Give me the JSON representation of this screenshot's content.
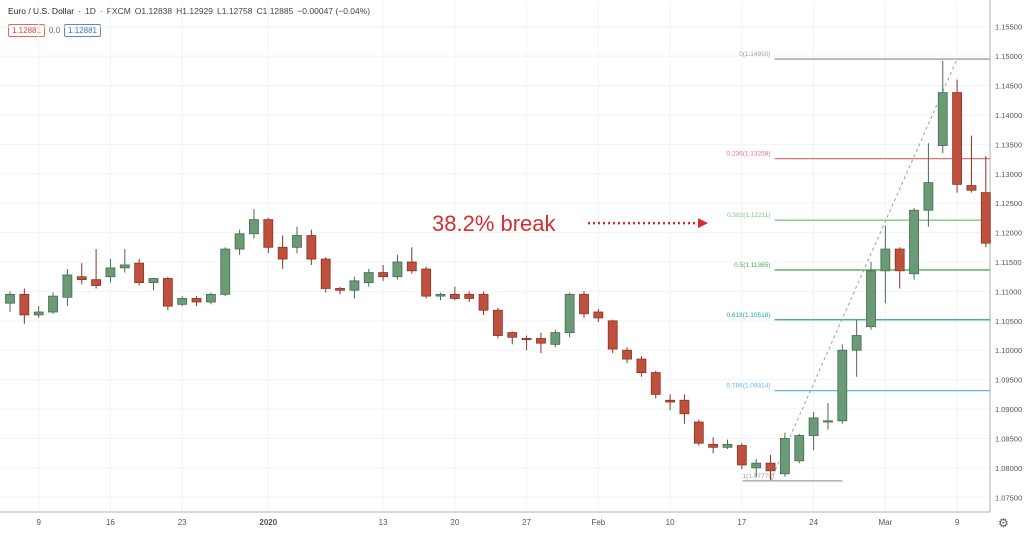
{
  "header": {
    "symbol": "Euro / U.S. Dollar",
    "interval": "1D",
    "source": "FXCM",
    "open": "O1.12838",
    "high": "H1.12929",
    "low": "L1.12758",
    "close": "C1.12885",
    "change": "−0.00047 (−0.04%)",
    "sell_price": "1.12881",
    "spread": "0.0",
    "buy_price": "1.12881"
  },
  "chart_data": {
    "type": "candlestick",
    "y_range": [
      1.0725,
      1.1575
    ],
    "y_ticks": [
      "1.07500",
      "1.08000",
      "1.08500",
      "1.09000",
      "1.09500",
      "1.10000",
      "1.10500",
      "1.11000",
      "1.11500",
      "1.12000",
      "1.12500",
      "1.13000",
      "1.13500",
      "1.14000",
      "1.14500",
      "1.15000",
      "1.15500"
    ],
    "x_ticks": [
      {
        "label": "9",
        "index": 2
      },
      {
        "label": "16",
        "index": 7
      },
      {
        "label": "23",
        "index": 12
      },
      {
        "label": "2020",
        "index": 18
      },
      {
        "label": "13",
        "index": 26
      },
      {
        "label": "20",
        "index": 31
      },
      {
        "label": "27",
        "index": 36
      },
      {
        "label": "Feb",
        "index": 41
      },
      {
        "label": "10",
        "index": 46
      },
      {
        "label": "17",
        "index": 51
      },
      {
        "label": "24",
        "index": 56
      },
      {
        "label": "Mar",
        "index": 61
      },
      {
        "label": "9",
        "index": 66
      }
    ],
    "candles": [
      {
        "o": 1.108,
        "h": 1.11,
        "l": 1.1065,
        "c": 1.1095
      },
      {
        "o": 1.1095,
        "h": 1.1105,
        "l": 1.1045,
        "c": 1.106
      },
      {
        "o": 1.106,
        "h": 1.1075,
        "l": 1.1055,
        "c": 1.1065
      },
      {
        "o": 1.1065,
        "h": 1.1098,
        "l": 1.1062,
        "c": 1.1092
      },
      {
        "o": 1.109,
        "h": 1.1138,
        "l": 1.1075,
        "c": 1.1128
      },
      {
        "o": 1.1125,
        "h": 1.1148,
        "l": 1.1112,
        "c": 1.112
      },
      {
        "o": 1.112,
        "h": 1.1172,
        "l": 1.1105,
        "c": 1.111
      },
      {
        "o": 1.1125,
        "h": 1.1155,
        "l": 1.1115,
        "c": 1.114
      },
      {
        "o": 1.114,
        "h": 1.1172,
        "l": 1.1132,
        "c": 1.1145
      },
      {
        "o": 1.1148,
        "h": 1.1155,
        "l": 1.111,
        "c": 1.1115
      },
      {
        "o": 1.1115,
        "h": 1.1122,
        "l": 1.1102,
        "c": 1.1122
      },
      {
        "o": 1.1122,
        "h": 1.1125,
        "l": 1.1068,
        "c": 1.1075
      },
      {
        "o": 1.1078,
        "h": 1.1092,
        "l": 1.1075,
        "c": 1.1088
      },
      {
        "o": 1.1088,
        "h": 1.1092,
        "l": 1.1075,
        "c": 1.1082
      },
      {
        "o": 1.1082,
        "h": 1.1098,
        "l": 1.1078,
        "c": 1.1095
      },
      {
        "o": 1.1095,
        "h": 1.1175,
        "l": 1.1092,
        "c": 1.1172
      },
      {
        "o": 1.1172,
        "h": 1.1205,
        "l": 1.1162,
        "c": 1.1198
      },
      {
        "o": 1.1198,
        "h": 1.124,
        "l": 1.119,
        "c": 1.1222
      },
      {
        "o": 1.1222,
        "h": 1.1225,
        "l": 1.1165,
        "c": 1.1175
      },
      {
        "o": 1.1175,
        "h": 1.1195,
        "l": 1.1138,
        "c": 1.1155
      },
      {
        "o": 1.1175,
        "h": 1.121,
        "l": 1.1165,
        "c": 1.1195
      },
      {
        "o": 1.1195,
        "h": 1.1205,
        "l": 1.1145,
        "c": 1.1155
      },
      {
        "o": 1.1155,
        "h": 1.1158,
        "l": 1.1098,
        "c": 1.1105
      },
      {
        "o": 1.1105,
        "h": 1.1108,
        "l": 1.1095,
        "c": 1.1102
      },
      {
        "o": 1.1102,
        "h": 1.1125,
        "l": 1.1088,
        "c": 1.1118
      },
      {
        "o": 1.1115,
        "h": 1.1138,
        "l": 1.1108,
        "c": 1.1132
      },
      {
        "o": 1.1132,
        "h": 1.1145,
        "l": 1.1118,
        "c": 1.1125
      },
      {
        "o": 1.1125,
        "h": 1.1162,
        "l": 1.112,
        "c": 1.115
      },
      {
        "o": 1.115,
        "h": 1.1175,
        "l": 1.113,
        "c": 1.1135
      },
      {
        "o": 1.1138,
        "h": 1.1142,
        "l": 1.1088,
        "c": 1.1092
      },
      {
        "o": 1.1092,
        "h": 1.1098,
        "l": 1.1085,
        "c": 1.1095
      },
      {
        "o": 1.1095,
        "h": 1.1108,
        "l": 1.1085,
        "c": 1.1088
      },
      {
        "o": 1.1095,
        "h": 1.11,
        "l": 1.1082,
        "c": 1.1088
      },
      {
        "o": 1.1095,
        "h": 1.11,
        "l": 1.106,
        "c": 1.1068
      },
      {
        "o": 1.1068,
        "h": 1.1072,
        "l": 1.102,
        "c": 1.1025
      },
      {
        "o": 1.103,
        "h": 1.1032,
        "l": 1.101,
        "c": 1.1022
      },
      {
        "o": 1.102,
        "h": 1.1025,
        "l": 1.1,
        "c": 1.1018
      },
      {
        "o": 1.102,
        "h": 1.103,
        "l": 1.0995,
        "c": 1.1012
      },
      {
        "o": 1.101,
        "h": 1.1035,
        "l": 1.1005,
        "c": 1.103
      },
      {
        "o": 1.103,
        "h": 1.1098,
        "l": 1.1022,
        "c": 1.1095
      },
      {
        "o": 1.1095,
        "h": 1.11,
        "l": 1.1055,
        "c": 1.1062
      },
      {
        "o": 1.1065,
        "h": 1.107,
        "l": 1.1048,
        "c": 1.1055
      },
      {
        "o": 1.105,
        "h": 1.1052,
        "l": 1.0995,
        "c": 1.1002
      },
      {
        "o": 1.1,
        "h": 1.1005,
        "l": 1.0978,
        "c": 1.0985
      },
      {
        "o": 1.0985,
        "h": 1.099,
        "l": 1.0955,
        "c": 1.0962
      },
      {
        "o": 1.0962,
        "h": 1.0965,
        "l": 1.0918,
        "c": 1.0925
      },
      {
        "o": 1.0915,
        "h": 1.0925,
        "l": 1.0898,
        "c": 1.0912
      },
      {
        "o": 1.0915,
        "h": 1.0925,
        "l": 1.0875,
        "c": 1.0892
      },
      {
        "o": 1.0878,
        "h": 1.0882,
        "l": 1.0838,
        "c": 1.0842
      },
      {
        "o": 1.084,
        "h": 1.0852,
        "l": 1.0825,
        "c": 1.0835
      },
      {
        "o": 1.0835,
        "h": 1.0848,
        "l": 1.0832,
        "c": 1.084
      },
      {
        "o": 1.0838,
        "h": 1.0842,
        "l": 1.0798,
        "c": 1.0805
      },
      {
        "o": 1.08,
        "h": 1.0815,
        "l": 1.0785,
        "c": 1.0808
      },
      {
        "o": 1.0808,
        "h": 1.0822,
        "l": 1.078,
        "c": 1.0795
      },
      {
        "o": 1.079,
        "h": 1.086,
        "l": 1.0785,
        "c": 1.085
      },
      {
        "o": 1.0812,
        "h": 1.0858,
        "l": 1.0808,
        "c": 1.0855
      },
      {
        "o": 1.0855,
        "h": 1.0895,
        "l": 1.083,
        "c": 1.0885
      },
      {
        "o": 1.088,
        "h": 1.091,
        "l": 1.0865,
        "c": 1.088
      },
      {
        "o": 1.088,
        "h": 1.101,
        "l": 1.0875,
        "c": 1.1
      },
      {
        "o": 1.1,
        "h": 1.1052,
        "l": 1.0955,
        "c": 1.1025
      },
      {
        "o": 1.104,
        "h": 1.115,
        "l": 1.1035,
        "c": 1.1135
      },
      {
        "o": 1.1135,
        "h": 1.1212,
        "l": 1.108,
        "c": 1.1172
      },
      {
        "o": 1.1172,
        "h": 1.1175,
        "l": 1.1105,
        "c": 1.1135
      },
      {
        "o": 1.113,
        "h": 1.1242,
        "l": 1.112,
        "c": 1.1238
      },
      {
        "o": 1.1238,
        "h": 1.1352,
        "l": 1.121,
        "c": 1.1285
      },
      {
        "o": 1.1348,
        "h": 1.1492,
        "l": 1.1335,
        "c": 1.1438
      },
      {
        "o": 1.1438,
        "h": 1.146,
        "l": 1.1268,
        "c": 1.1282
      },
      {
        "o": 1.128,
        "h": 1.1365,
        "l": 1.1268,
        "c": 1.1272
      },
      {
        "o": 1.1268,
        "h": 1.133,
        "l": 1.1175,
        "c": 1.1182
      }
    ],
    "fibonacci": {
      "levels": [
        {
          "label": "0(1.14950)",
          "value": 1.1495,
          "color": "#9e9e9e"
        },
        {
          "label": "0.236(1.13258)",
          "value": 1.13258,
          "color": "#e57373"
        },
        {
          "label": "0.382(1.12211)",
          "value": 1.12211,
          "color": "#81c784"
        },
        {
          "label": "0.5(1.11365)",
          "value": 1.11365,
          "color": "#4caf50"
        },
        {
          "label": "0.618(1.10518)",
          "value": 1.10518,
          "color": "#26a69a"
        },
        {
          "label": "0.786(1.09314)",
          "value": 1.09314,
          "color": "#64b5f6"
        },
        {
          "label": "1(1.07779)",
          "value": 1.07779,
          "color": "#9e9e9e"
        }
      ],
      "trend_from": {
        "index": 53,
        "value": 1.07779
      },
      "trend_to": {
        "index": 66,
        "value": 1.1495
      }
    },
    "annotation": {
      "text": "38.2% break",
      "color": "#d32f2f",
      "value": 1.12211
    },
    "colors": {
      "up": "#6b9a76",
      "down": "#c0503e",
      "up_border": "#476b52",
      "down_border": "#8a3428",
      "grid": "#f0f3f6"
    }
  }
}
